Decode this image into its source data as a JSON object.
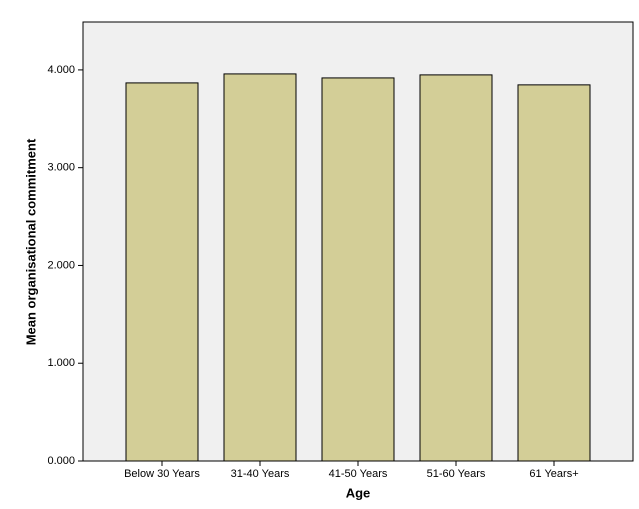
{
  "chart_data": {
    "type": "bar",
    "x_label": "Age",
    "y_label": "Mean organisational commitment",
    "categories": [
      "Below 30 Years",
      "31-40 Years",
      "41-50 Years",
      "51-60 Years",
      "61 Years+"
    ],
    "values": [
      3.867,
      3.959,
      3.918,
      3.949,
      3.847
    ],
    "color": "#d3ce97",
    "ylim": [
      0,
      4.49
    ],
    "yticks": [
      {
        "value": 0,
        "label": "0.000"
      },
      {
        "value": 1,
        "label": "1.000"
      },
      {
        "value": 2,
        "label": "2.000"
      },
      {
        "value": 3,
        "label": "3.000"
      },
      {
        "value": 4,
        "label": "4.000"
      }
    ],
    "grid": false
  }
}
